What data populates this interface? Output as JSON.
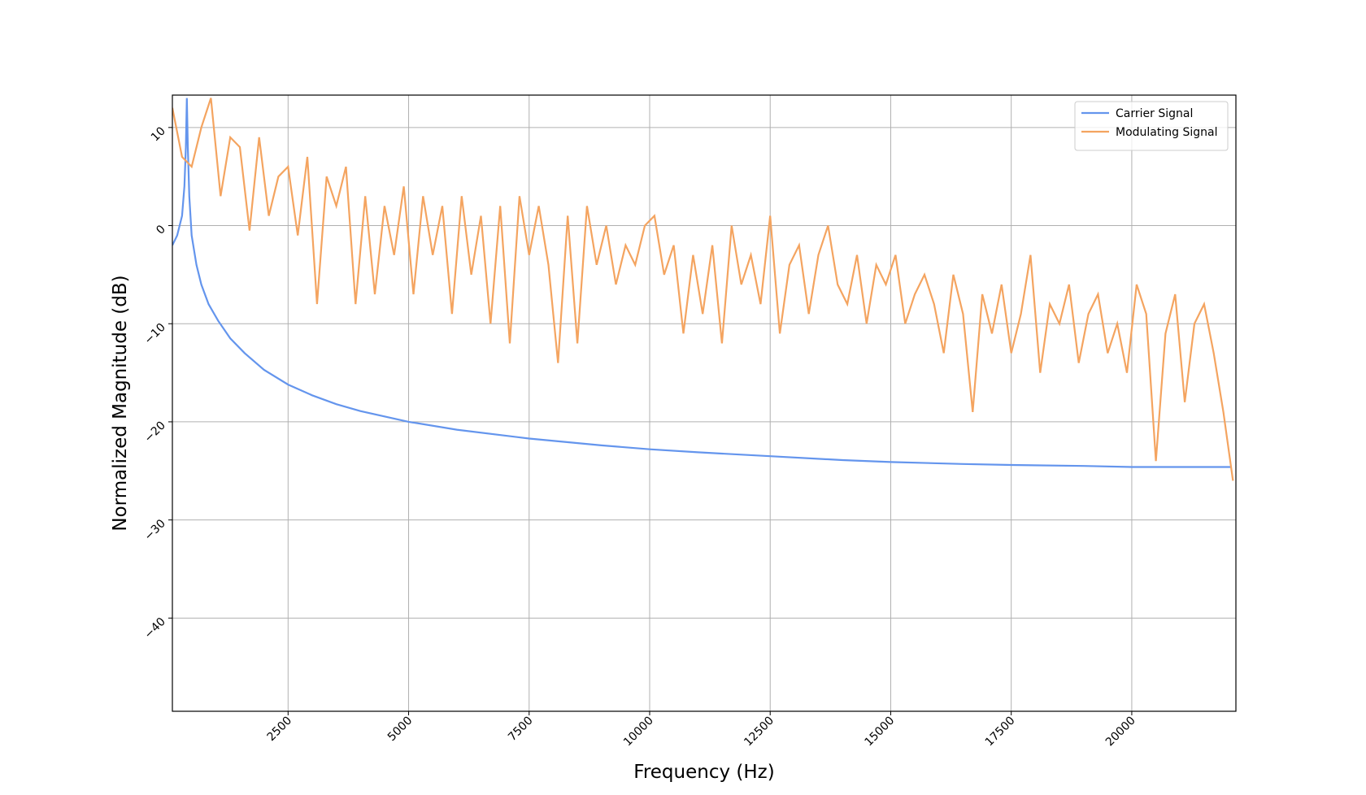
{
  "chart_data": {
    "type": "line",
    "x_label": "Frequency (Hz)",
    "y_label": "Normalized Magnitude (dB)",
    "xlim": [
      100,
      22160
    ],
    "ylim": [
      -49.5,
      13.3
    ],
    "xticks": [
      2500,
      5000,
      7500,
      10000,
      12500,
      15000,
      17500,
      20000
    ],
    "yticks": [
      {
        "value": -40,
        "label": "−40"
      },
      {
        "value": -30,
        "label": "−30"
      },
      {
        "value": -20,
        "label": "−20"
      },
      {
        "value": -10,
        "label": "−10"
      },
      0,
      10
    ],
    "grid": true,
    "legend": "upper right",
    "series": [
      {
        "name": "Carrier Signal",
        "color": "#6495ED",
        "x": [
          100,
          200,
          300,
          350,
          380,
          400,
          420,
          450,
          500,
          600,
          700,
          850,
          1050,
          1300,
          1600,
          2000,
          2500,
          3000,
          3500,
          4000,
          5000,
          6000,
          7500,
          9000,
          10000,
          11000,
          12500,
          14000,
          15000,
          16500,
          17500,
          19000,
          20000,
          21000,
          22050
        ],
        "values": [
          -2,
          -1,
          1,
          4,
          8,
          13,
          8,
          3,
          -1,
          -4,
          -6,
          -8,
          -9.7,
          -11.5,
          -13,
          -14.7,
          -16.2,
          -17.3,
          -18.2,
          -18.9,
          -20,
          -20.8,
          -21.7,
          -22.4,
          -22.8,
          -23.1,
          -23.5,
          -23.9,
          -24.1,
          -24.3,
          -24.4,
          -24.5,
          -24.6,
          -24.6,
          -24.6
        ]
      },
      {
        "name": "Modulating Signal",
        "color": "#F4A460",
        "x": [
          100,
          300,
          500,
          700,
          900,
          1100,
          1300,
          1500,
          1700,
          1900,
          2100,
          2300,
          2500,
          2700,
          2900,
          3100,
          3300,
          3500,
          3700,
          3900,
          4100,
          4300,
          4500,
          4700,
          4900,
          5100,
          5300,
          5500,
          5700,
          5900,
          6100,
          6300,
          6500,
          6700,
          6900,
          7100,
          7300,
          7500,
          7700,
          7900,
          8100,
          8300,
          8500,
          8700,
          8900,
          9100,
          9300,
          9500,
          9700,
          9900,
          10100,
          10300,
          10500,
          10700,
          10900,
          11100,
          11300,
          11500,
          11700,
          11900,
          12100,
          12300,
          12500,
          12700,
          12900,
          13100,
          13300,
          13500,
          13700,
          13900,
          14100,
          14300,
          14500,
          14700,
          14900,
          15100,
          15300,
          15500,
          15700,
          15900,
          16100,
          16300,
          16500,
          16700,
          16900,
          17100,
          17300,
          17500,
          17700,
          17900,
          18100,
          18300,
          18500,
          18700,
          18900,
          19100,
          19300,
          19500,
          19700,
          19900,
          20100,
          20300,
          20500,
          20700,
          20900,
          21100,
          21300,
          21500,
          21700,
          21900,
          22100
        ],
        "values": [
          12,
          7,
          6,
          10,
          13,
          3,
          9,
          8,
          -0.5,
          9,
          1,
          5,
          6,
          -1,
          7,
          -8,
          5,
          2,
          6,
          -8,
          3,
          -7,
          2,
          -3,
          4,
          -7,
          3,
          -3,
          2,
          -9,
          3,
          -5,
          1,
          -10,
          2,
          -12,
          3,
          -3,
          2,
          -4,
          -14,
          1,
          -12,
          2,
          -4,
          0,
          -6,
          -2,
          -4,
          0,
          1,
          -5,
          -2,
          -11,
          -3,
          -9,
          -2,
          -12,
          0,
          -6,
          -3,
          -8,
          1,
          -11,
          -4,
          -2,
          -9,
          -3,
          0,
          -6,
          -8,
          -3,
          -10,
          -4,
          -6,
          -3,
          -10,
          -7,
          -5,
          -8,
          -13,
          -5,
          -9,
          -19,
          -7,
          -11,
          -6,
          -13,
          -9,
          -3,
          -15,
          -8,
          -10,
          -6,
          -14,
          -9,
          -7,
          -13,
          -10,
          -15,
          -6,
          -9,
          -24,
          -11,
          -7,
          -18,
          -10,
          -8,
          -13,
          -19,
          -26
        ]
      }
    ]
  }
}
